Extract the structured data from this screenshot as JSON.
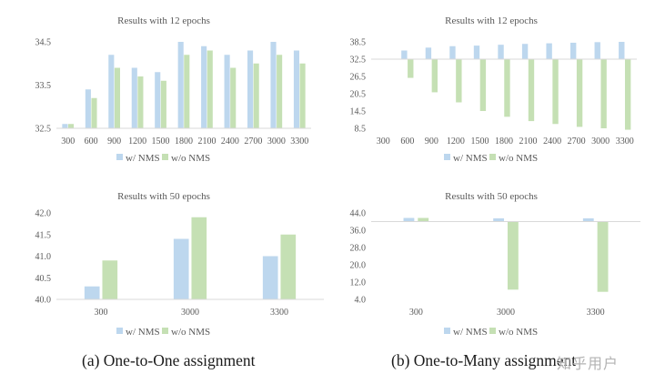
{
  "colors": {
    "with_nms": "#bdd7ee",
    "without_nms": "#c5e0b4",
    "axis": "#d9d9d9",
    "text": "#595959"
  },
  "captions": {
    "left": "(a) One-to-One assignment",
    "right": "(b) One-to-Many assignment"
  },
  "watermark": "知乎用户",
  "chart_data": [
    {
      "id": "o2o-12",
      "type": "bar",
      "title": "Results with 12 epochs",
      "categories": [
        "300",
        "600",
        "900",
        "1200",
        "1500",
        "1800",
        "2100",
        "2400",
        "2700",
        "3000",
        "3300"
      ],
      "series": [
        {
          "name": "w/ NMS",
          "values": [
            32.6,
            33.4,
            34.2,
            33.9,
            33.8,
            34.5,
            34.4,
            34.2,
            34.3,
            34.5,
            34.3
          ]
        },
        {
          "name": "w/o NMS",
          "values": [
            32.6,
            33.2,
            33.9,
            33.7,
            33.6,
            34.2,
            34.3,
            33.9,
            34.0,
            34.2,
            34.0
          ]
        }
      ],
      "yticks": [
        "34.5",
        "33.5",
        "32.5"
      ],
      "ylim": [
        32.5,
        34.5
      ],
      "baseline": 32.5,
      "legend": [
        "w/ NMS",
        "w/o NMS"
      ]
    },
    {
      "id": "o2m-12",
      "type": "bar",
      "title": "Results with 12 epochs",
      "categories": [
        "300",
        "600",
        "900",
        "1200",
        "1500",
        "1800",
        "2100",
        "2400",
        "2700",
        "3000",
        "3300"
      ],
      "series": [
        {
          "name": "w/ NMS",
          "values": [
            null,
            35.5,
            36.5,
            37.0,
            37.2,
            37.5,
            37.8,
            38.0,
            38.2,
            38.4,
            38.5
          ]
        },
        {
          "name": "w/o NMS",
          "values": [
            null,
            26.0,
            21.0,
            17.5,
            14.5,
            12.5,
            11.0,
            10.0,
            9.0,
            8.5,
            8.0
          ]
        }
      ],
      "yticks": [
        "38.5",
        "32.5",
        "26.5",
        "20.5",
        "14.5",
        "8.5"
      ],
      "ylim": [
        8.5,
        38.5
      ],
      "baseline": 32.5,
      "legend": [
        "w/ NMS",
        "w/o NMS"
      ]
    },
    {
      "id": "o2o-50",
      "type": "bar",
      "title": "Results with 50 epochs",
      "categories": [
        "300",
        "3000",
        "3300"
      ],
      "series": [
        {
          "name": "w/ NMS",
          "values": [
            40.3,
            41.4,
            41.0
          ]
        },
        {
          "name": "w/o NMS",
          "values": [
            40.9,
            41.9,
            41.5
          ]
        }
      ],
      "yticks": [
        "42.0",
        "41.5",
        "41.0",
        "40.5",
        "40.0"
      ],
      "ylim": [
        40.0,
        42.0
      ],
      "baseline": 40.0,
      "legend": [
        "w/ NMS",
        "w/o NMS"
      ]
    },
    {
      "id": "o2m-50",
      "type": "bar",
      "title": "Results with 50 epochs",
      "categories": [
        "300",
        "3000",
        "3300"
      ],
      "series": [
        {
          "name": "w/ NMS",
          "values": [
            40.3,
            41.5,
            41.5
          ]
        },
        {
          "name": "w/o NMS",
          "values": [
            40.7,
            8.5,
            7.5
          ]
        }
      ],
      "yticks": [
        "44.0",
        "36.0",
        "28.0",
        "20.0",
        "12.0",
        "4.0"
      ],
      "ylim": [
        4.0,
        44.0
      ],
      "baseline": 40.0,
      "legend": [
        "w/ NMS",
        "w/o NMS"
      ]
    }
  ]
}
